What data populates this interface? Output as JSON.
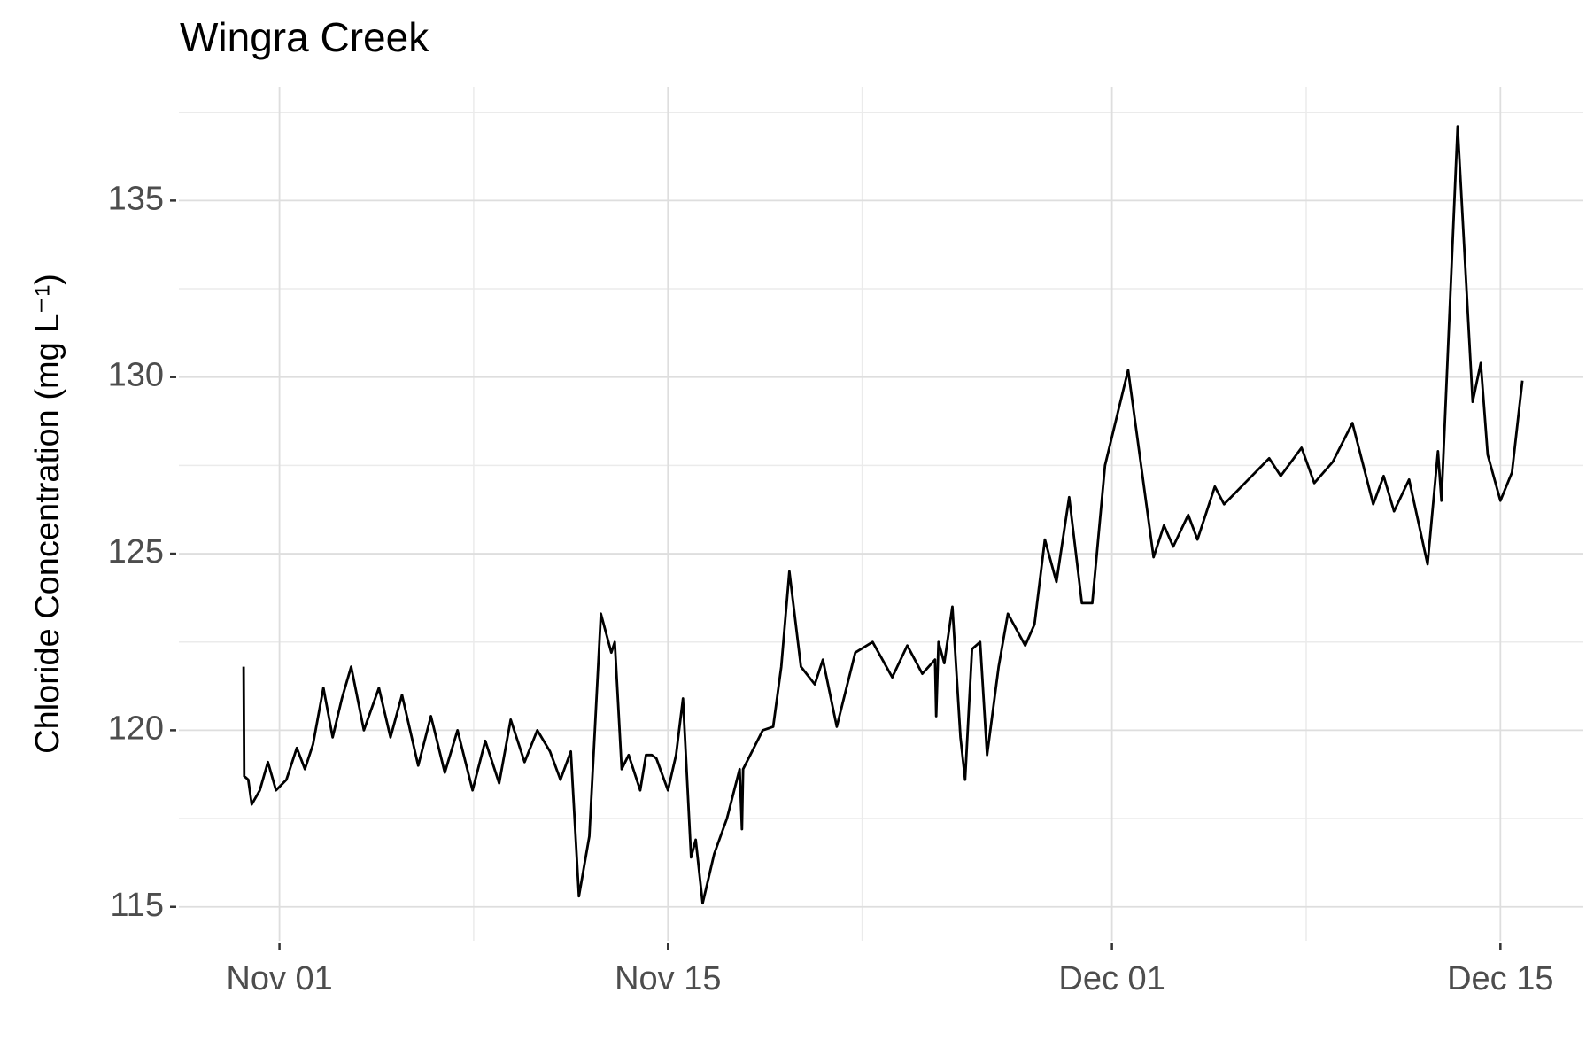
{
  "chart_data": {
    "type": "line",
    "title": "Wingra Creek",
    "y_label": "Chloride Concentration (mg L⁻¹)",
    "x": [
      "Oct 30 17:00",
      "Oct 30 17:30",
      "Oct 30 21:00",
      "Oct 31 00:00",
      "Oct 31 07:00",
      "Oct 31 14:00",
      "Oct 31 21:00",
      "Nov 01 06:00",
      "Nov 01 15:00",
      "Nov 01 22:00",
      "Nov 02 05:00",
      "Nov 02 14:00",
      "Nov 02 22:00",
      "Nov 03 06:00",
      "Nov 03 14:00",
      "Nov 04 01:00",
      "Nov 04 14:00",
      "Nov 05 00:00",
      "Nov 05 10:00",
      "Nov 06 00:00",
      "Nov 06 11:00",
      "Nov 06 23:00",
      "Nov 07 10:00",
      "Nov 07 23:00",
      "Nov 08 10:00",
      "Nov 08 22:00",
      "Nov 09 08:00",
      "Nov 09 20:00",
      "Nov 10 07:00",
      "Nov 10 18:00",
      "Nov 11 03:00",
      "Nov 11 12:00",
      "Nov 11 19:00",
      "Nov 12 04:00",
      "Nov 12 14:00",
      "Nov 12 23:00",
      "Nov 13 02:00",
      "Nov 13 08:00",
      "Nov 13 14:00",
      "Nov 14 00:00",
      "Nov 14 05:00",
      "Nov 14 10:00",
      "Nov 14 14:00",
      "Nov 15 00:00",
      "Nov 15 07:00",
      "Nov 15 13:00",
      "Nov 15 20:00",
      "Nov 16 00:00",
      "Nov 16 06:00",
      "Nov 16 16:00",
      "Nov 17 03:00",
      "Nov 17 14:00",
      "Nov 17 16:00",
      "Nov 17 17:00",
      "Nov 18 10:00",
      "Nov 18 19:00",
      "Nov 19 02:00",
      "Nov 19 09:00",
      "Nov 19 19:00",
      "Nov 20 07:00",
      "Nov 20 14:00",
      "Nov 21 02:00",
      "Nov 21 18:00",
      "Nov 22 09:00",
      "Nov 23 02:00",
      "Nov 23 15:00",
      "Nov 24 04:00",
      "Nov 24 15:00",
      "Nov 24 16:00",
      "Nov 24 18:00",
      "Nov 24 23:00",
      "Nov 25 06:00",
      "Nov 25 13:00",
      "Nov 25 17:00",
      "Nov 25 23:00",
      "Nov 26 06:00",
      "Nov 26 12:00",
      "Nov 26 22:00",
      "Nov 27 06:00",
      "Nov 27 21:00",
      "Nov 28 05:00",
      "Nov 28 14:00",
      "Nov 29 00:00",
      "Nov 29 11:00",
      "Nov 29 22:00",
      "Nov 30 07:00",
      "Nov 30 18:00",
      "Dec 01 14:00",
      "Dec 02 12:00",
      "Dec 02 21:00",
      "Dec 03 05:00",
      "Dec 03 18:00",
      "Dec 04 02:00",
      "Dec 04 17:00",
      "Dec 05 01:00",
      "Dec 05 19:00",
      "Dec 06 16:00",
      "Dec 07 02:00",
      "Dec 07 20:00",
      "Dec 08 07:00",
      "Dec 08 23:00",
      "Dec 09 16:00",
      "Dec 10 10:00",
      "Dec 10 19:00",
      "Dec 11 04:00",
      "Dec 11 17:00",
      "Dec 12 09:00",
      "Dec 12 18:00",
      "Dec 12 21:00",
      "Dec 13 11:00",
      "Dec 14 00:00",
      "Dec 14 07:00",
      "Dec 14 13:00",
      "Dec 15 00:00",
      "Dec 15 10:00",
      "Dec 15 19:00"
    ],
    "series": [
      {
        "color": "#000000",
        "values": [
          121.8,
          118.7,
          118.6,
          117.9,
          118.3,
          119.1,
          118.3,
          118.6,
          119.5,
          118.9,
          119.6,
          121.2,
          119.8,
          120.9,
          121.8,
          120.0,
          121.2,
          119.8,
          121.0,
          119.0,
          120.4,
          118.8,
          120.0,
          118.3,
          119.7,
          118.5,
          120.3,
          119.1,
          120.0,
          119.4,
          118.6,
          119.4,
          115.3,
          117.0,
          123.3,
          122.2,
          122.5,
          118.9,
          119.3,
          118.3,
          119.3,
          119.3,
          119.2,
          118.3,
          119.3,
          120.9,
          116.4,
          116.9,
          115.1,
          116.5,
          117.5,
          118.9,
          117.2,
          118.9,
          120.0,
          120.1,
          121.8,
          124.5,
          121.8,
          121.3,
          122.0,
          120.1,
          122.2,
          122.5,
          121.5,
          122.4,
          121.6,
          122.0,
          120.4,
          122.5,
          121.9,
          123.5,
          119.8,
          118.6,
          122.3,
          122.5,
          119.3,
          121.8,
          123.3,
          122.4,
          123.0,
          125.4,
          124.2,
          126.6,
          123.6,
          123.6,
          127.5,
          130.2,
          124.9,
          125.8,
          125.2,
          126.1,
          125.4,
          126.9,
          126.4,
          127.0,
          127.7,
          127.2,
          128.0,
          127.0,
          127.6,
          128.7,
          126.4,
          127.2,
          126.2,
          127.1,
          124.7,
          127.9,
          126.5,
          137.1,
          129.3,
          130.4,
          127.8,
          126.5,
          127.3,
          129.9
        ]
      }
    ],
    "xlim": [
      "Oct 28 09:00",
      "Dec 17 23:45"
    ],
    "xticks": [
      "Nov 01",
      "Nov 15",
      "Dec 01",
      "Dec 15"
    ],
    "x_minor_grid": [
      "Nov 08",
      "Nov 22",
      "Dec 08"
    ],
    "ylim": [
      114.04,
      138.22
    ],
    "yticks": [
      115,
      120,
      125,
      130,
      135
    ],
    "y_minor_grid": [
      117.5,
      122.5,
      127.5,
      132.5,
      137.5
    ],
    "grid": true
  }
}
